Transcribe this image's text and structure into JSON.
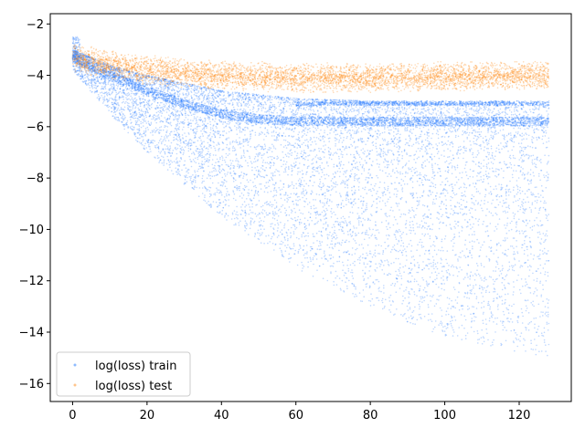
{
  "chart_data": {
    "type": "scatter",
    "title": "",
    "xlabel": "",
    "ylabel": "",
    "xlim": [
      -6,
      134
    ],
    "ylim": [
      -16.7,
      -1.6
    ],
    "x_ticks": [
      0,
      20,
      40,
      60,
      80,
      100,
      120
    ],
    "y_ticks": [
      -2,
      -4,
      -6,
      -8,
      -10,
      -12,
      -14,
      -16
    ],
    "x_tick_labels": [
      "0",
      "20",
      "40",
      "60",
      "80",
      "100",
      "120"
    ],
    "y_tick_labels": [
      "−2",
      "−4",
      "−6",
      "−8",
      "−10",
      "−12",
      "−14",
      "−16"
    ],
    "grid": false,
    "legend_position": "lower-left",
    "series": [
      {
        "name": "log(loss) train",
        "color": "#1f77ff",
        "x_range": [
          0,
          128
        ],
        "start_value": -2.5,
        "upper_envelope": [
          [
            0,
            -3.0
          ],
          [
            10,
            -3.6
          ],
          [
            20,
            -4.0
          ],
          [
            40,
            -4.6
          ],
          [
            60,
            -4.9
          ],
          [
            80,
            -5.0
          ],
          [
            128,
            -5.0
          ]
        ],
        "dense_line": [
          [
            0,
            -3.3
          ],
          [
            10,
            -4.0
          ],
          [
            20,
            -4.6
          ],
          [
            30,
            -5.1
          ],
          [
            40,
            -5.5
          ],
          [
            50,
            -5.7
          ],
          [
            60,
            -5.78
          ],
          [
            80,
            -5.8
          ],
          [
            128,
            -5.8
          ]
        ],
        "secondary_line": [
          [
            60,
            -5.1
          ],
          [
            128,
            -5.1
          ]
        ],
        "lower_envelope": [
          [
            0,
            -3.8
          ],
          [
            10,
            -5.5
          ],
          [
            20,
            -7.0
          ],
          [
            40,
            -9.5
          ],
          [
            60,
            -11.5
          ],
          [
            80,
            -13.0
          ],
          [
            100,
            -14.2
          ],
          [
            128,
            -15.0
          ]
        ]
      },
      {
        "name": "log(loss) test",
        "color": "#ff8c1a",
        "x_range": [
          0,
          128
        ],
        "center": [
          [
            0,
            -3.3
          ],
          [
            10,
            -3.6
          ],
          [
            20,
            -3.8
          ],
          [
            40,
            -4.0
          ],
          [
            60,
            -4.1
          ],
          [
            80,
            -4.1
          ],
          [
            128,
            -4.0
          ]
        ],
        "spread": 0.6
      }
    ]
  }
}
